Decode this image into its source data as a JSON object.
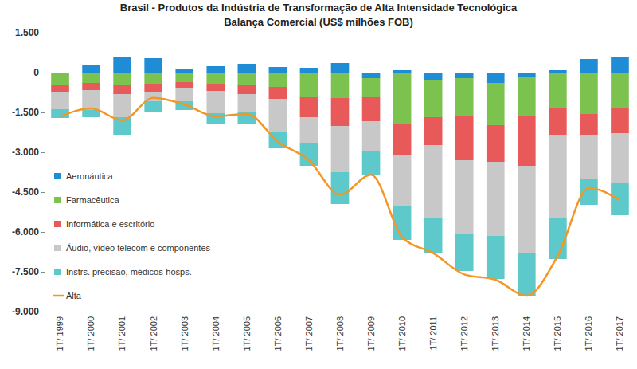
{
  "chart_data": {
    "type": "bar",
    "title": "Brasil - Produtos da Indústria de Transformação de Alta Intensidade Tecnológica",
    "subtitle": "Balança Comercial (US$ milhões FOB)",
    "stacked": true,
    "grid": false,
    "legend": "left",
    "categories": [
      "1T/ 1999",
      "1T/ 2000",
      "1T/ 2001",
      "1T/ 2002",
      "1T/ 2003",
      "1T/ 2004",
      "1T/ 2005",
      "1T/ 2006",
      "1T/ 2007",
      "1T/ 2008",
      "1T/ 2009",
      "1T/ 2010",
      "1T/ 2011",
      "1T/ 2012",
      "1T/ 2013",
      "1T/ 2014",
      "1T/ 2015",
      "1T/ 2016",
      "1T/ 2017"
    ],
    "ylim": [
      -9000,
      1500
    ],
    "yticks": [
      {
        "value": 1500,
        "label": "1.500"
      },
      0,
      {
        "value": -1500,
        "label": "-1.500"
      },
      {
        "value": -3000,
        "label": "-3.000"
      },
      {
        "value": -4500,
        "label": "-4.500"
      },
      {
        "value": -6000,
        "label": "-6.000"
      },
      {
        "value": -7500,
        "label": "-7.500"
      },
      {
        "value": -9000,
        "label": "-9.000"
      }
    ],
    "series": [
      {
        "name": "Aeronáutica",
        "type": "bar",
        "color": "#1f8dd6",
        "values": [
          0,
          300,
          570,
          540,
          150,
          240,
          330,
          210,
          180,
          360,
          -210,
          90,
          -270,
          -210,
          -390,
          -150,
          90,
          510,
          570
        ]
      },
      {
        "name": "Farmacêutica",
        "type": "bar",
        "color": "#7cc24e",
        "values": [
          -480,
          -390,
          -480,
          -450,
          -360,
          -450,
          -480,
          -540,
          -930,
          -960,
          -720,
          -1920,
          -1410,
          -1440,
          -1590,
          -1470,
          -1320,
          -1560,
          -1320
        ]
      },
      {
        "name": "Informática e escritório",
        "type": "bar",
        "color": "#e85a5a",
        "values": [
          -240,
          -270,
          -330,
          -300,
          -210,
          -240,
          -330,
          -450,
          -750,
          -1050,
          -900,
          -1170,
          -1050,
          -1650,
          -1380,
          -1890,
          -1050,
          -810,
          -960
        ]
      },
      {
        "name": "Áudio, vídeo telecom e componentes",
        "type": "bar",
        "color": "#c8c8c8",
        "values": [
          -660,
          -750,
          -870,
          -330,
          -510,
          -840,
          -660,
          -1230,
          -990,
          -1740,
          -1110,
          -1920,
          -2760,
          -2760,
          -2790,
          -3300,
          -3090,
          -1620,
          -1860
        ]
      },
      {
        "name": "Instrs. precisão, médicos-hosps.",
        "type": "bar",
        "color": "#5ec9cb",
        "values": [
          -330,
          -270,
          -660,
          -420,
          -330,
          -390,
          -450,
          -630,
          -840,
          -1200,
          -900,
          -1290,
          -1320,
          -1410,
          -1620,
          -1590,
          -1560,
          -990,
          -1230
        ]
      },
      {
        "name": "Alta",
        "type": "line",
        "color": "#f59623",
        "values": [
          -1650,
          -1350,
          -1800,
          -950,
          -1200,
          -1650,
          -1550,
          -2600,
          -3300,
          -4600,
          -3850,
          -6200,
          -6800,
          -7600,
          -7800,
          -8400,
          -6900,
          -4350,
          -4800
        ]
      }
    ]
  }
}
